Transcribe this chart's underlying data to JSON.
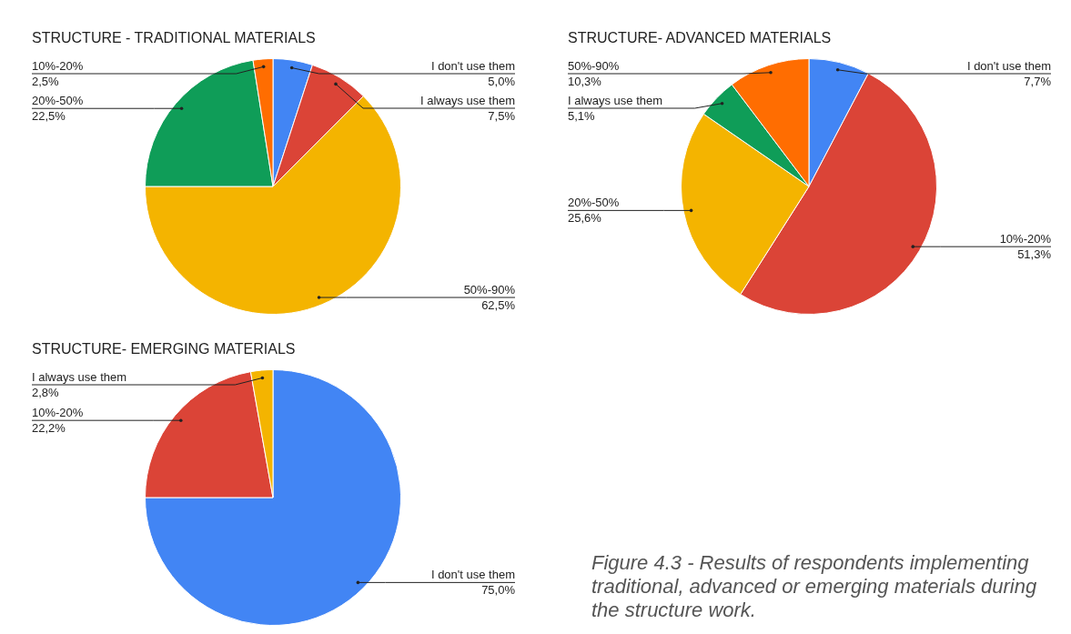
{
  "chart_data": [
    {
      "type": "pie",
      "title": "STRUCTURE - TRADITIONAL MATERIALS",
      "categories": [
        "I don't use them",
        "I always use them",
        "50%-90%",
        "20%-50%",
        "10%-20%"
      ],
      "values": [
        5.0,
        7.5,
        62.5,
        22.5,
        2.5
      ],
      "value_labels": [
        "5,0%",
        "7,5%",
        "62,5%",
        "22,5%",
        "2,5%"
      ],
      "colors": [
        "#4285f4",
        "#db4437",
        "#f4b400",
        "#0f9d58",
        "#ff6d01"
      ]
    },
    {
      "type": "pie",
      "title": "STRUCTURE- ADVANCED MATERIALS",
      "categories": [
        "I don't use them",
        "10%-20%",
        "20%-50%",
        "I always use them",
        "50%-90%"
      ],
      "values": [
        7.7,
        51.3,
        25.6,
        5.1,
        10.3
      ],
      "value_labels": [
        "7,7%",
        "51,3%",
        "25,6%",
        "5,1%",
        "10,3%"
      ],
      "colors": [
        "#4285f4",
        "#db4437",
        "#f4b400",
        "#0f9d58",
        "#ff6d01"
      ]
    },
    {
      "type": "pie",
      "title": "STRUCTURE- EMERGING MATERIALS",
      "categories": [
        "I don't use them",
        "10%-20%",
        "I always use them"
      ],
      "values": [
        75.0,
        22.2,
        2.8
      ],
      "value_labels": [
        "75,0%",
        "22,2%",
        "2,8%"
      ],
      "colors": [
        "#4285f4",
        "#db4437",
        "#f4b400"
      ],
      "annotations": [
        "Figure 4.3 - Results of respondents implementing traditional, advanced or emerging materials during the structure work."
      ]
    }
  ]
}
